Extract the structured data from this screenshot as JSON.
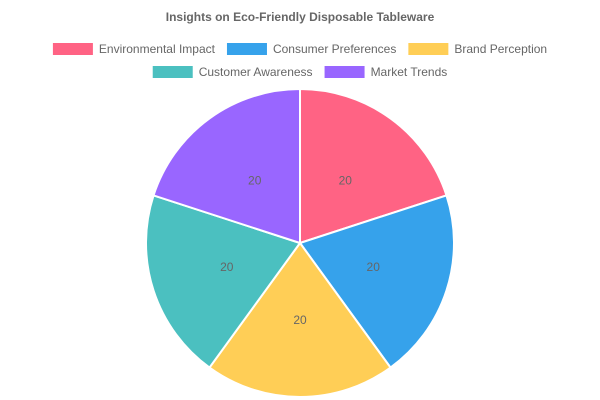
{
  "chart_data": {
    "type": "pie",
    "title": "Insights on Eco-Friendly Disposable Tableware",
    "categories": [
      "Environmental Impact",
      "Consumer Preferences",
      "Brand Perception",
      "Customer Awareness",
      "Market Trends"
    ],
    "values": [
      20,
      20,
      20,
      20,
      20
    ],
    "colors": [
      "#ff6384",
      "#36a2eb",
      "#ffce56",
      "#4bc0c0",
      "#9966ff"
    ],
    "legend_position": "top",
    "data_labels": true
  }
}
